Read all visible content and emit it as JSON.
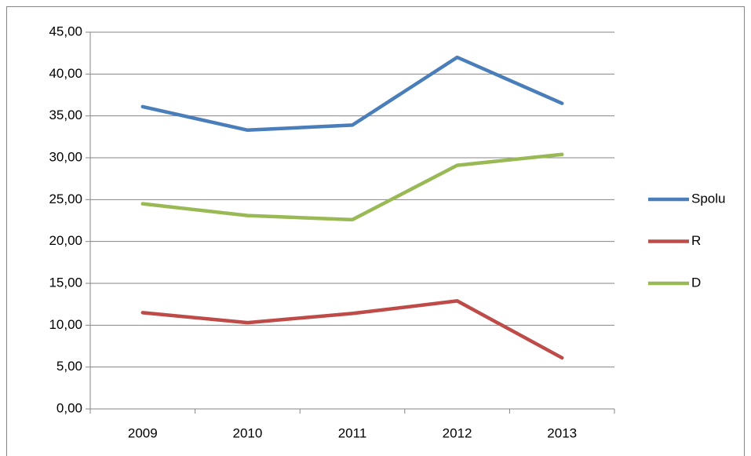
{
  "chart_data": {
    "type": "line",
    "categories": [
      "2009",
      "2010",
      "2011",
      "2012",
      "2013"
    ],
    "series": [
      {
        "name": "Spolu",
        "color": "#4a7ebb",
        "values": [
          36.1,
          33.3,
          33.9,
          42.0,
          36.5
        ]
      },
      {
        "name": "R",
        "color": "#be4b48",
        "values": [
          11.5,
          10.3,
          11.4,
          12.9,
          6.1
        ]
      },
      {
        "name": "D",
        "color": "#98b954",
        "values": [
          24.5,
          23.1,
          22.6,
          29.1,
          30.4
        ]
      }
    ],
    "ylim": [
      0,
      45
    ],
    "yticks": [
      {
        "value": 0,
        "label": "0,00"
      },
      {
        "value": 5,
        "label": "5,00"
      },
      {
        "value": 10,
        "label": "10,00"
      },
      {
        "value": 15,
        "label": "15,00"
      },
      {
        "value": 20,
        "label": "20,00"
      },
      {
        "value": 25,
        "label": "25,00"
      },
      {
        "value": 30,
        "label": "30,00"
      },
      {
        "value": 35,
        "label": "35,00"
      },
      {
        "value": 40,
        "label": "40,00"
      },
      {
        "value": 45,
        "label": "45,00"
      }
    ],
    "grid": true,
    "legend": "right"
  }
}
